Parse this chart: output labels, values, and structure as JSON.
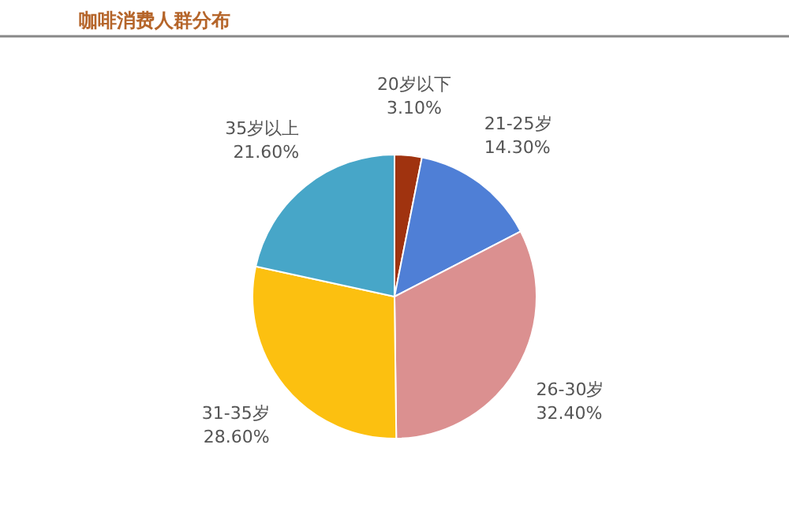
{
  "chart_data": {
    "type": "pie",
    "title": "咖啡消费人群分布",
    "categories": [
      "20岁以下",
      "21-25岁",
      "26-30岁",
      "31-35岁",
      "35岁以上"
    ],
    "values": [
      3.1,
      14.3,
      32.4,
      28.6,
      21.6
    ],
    "value_labels": [
      "3.10%",
      "14.30%",
      "32.40%",
      "28.60%",
      "21.60%"
    ],
    "colors": [
      "#a0330f",
      "#4f7fd6",
      "#db9090",
      "#fcc010",
      "#47a6c8"
    ],
    "legend": false
  }
}
